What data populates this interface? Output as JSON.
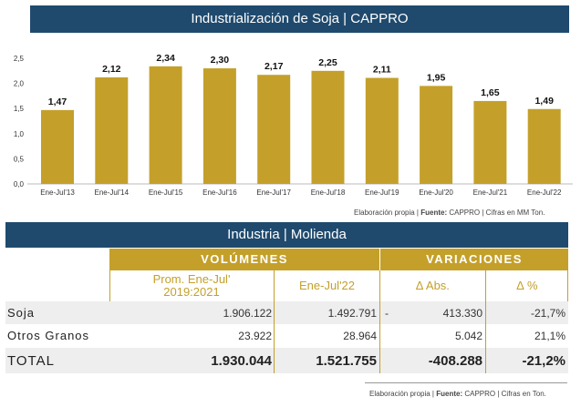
{
  "header": {
    "title": "Industrialización de Soja | CAPPRO"
  },
  "chart_data": {
    "type": "bar",
    "categories": [
      "Ene-Jul'13",
      "Ene-Jul'14",
      "Ene-Jul'15",
      "Ene-Jul'16",
      "Ene-Jul'17",
      "Ene-Jul'18",
      "Ene-Jul'19",
      "Ene-Jul'20",
      "Ene-Jul'21",
      "Ene-Jul'22"
    ],
    "values": [
      1.47,
      2.12,
      2.34,
      2.3,
      2.17,
      2.25,
      2.11,
      1.95,
      1.65,
      1.49
    ],
    "value_labels": [
      "1,47",
      "2,12",
      "2,34",
      "2,30",
      "2,17",
      "2,25",
      "2,11",
      "1,95",
      "1,65",
      "1,49"
    ],
    "yticks": [
      "0,0",
      "0,5",
      "1,0",
      "1,5",
      "2,0",
      "2,5"
    ],
    "ylim": [
      0,
      2.5
    ],
    "color": "#c4a02b"
  },
  "chart_source": {
    "prefix": "Elaboración propia | ",
    "bold": "Fuente:",
    "suffix": " CAPPRO | Cifras en MM Ton."
  },
  "industria": {
    "title": "Industria | Molienda",
    "group_volumenes": "VOLÚMENES",
    "group_variaciones": "VARIACIONES",
    "col_prom_line1": "Prom. Ene-Jul'",
    "col_prom_line2": "2019:2021",
    "col_enejul22": "Ene-Jul'22",
    "col_abs": "∆ Abs.",
    "col_pct": "∆ %",
    "rows": [
      {
        "label": "Soja",
        "prom": "1.906.122",
        "actual": "1.492.791",
        "abs_sign": "-",
        "abs": "413.330",
        "pct": "-21,7%"
      },
      {
        "label": "Otros Granos",
        "prom": "23.922",
        "actual": "28.964",
        "abs_sign": "",
        "abs": "5.042",
        "pct": "21,1%"
      }
    ],
    "total": {
      "label": "TOTAL",
      "prom": "1.930.044",
      "actual": "1.521.755",
      "abs": "-408.288",
      "pct": "-21,2%"
    }
  },
  "table_source": {
    "prefix": "Elaboración propia | ",
    "bold": "Fuente:",
    "suffix": " CAPPRO | Cifras en Ton."
  }
}
